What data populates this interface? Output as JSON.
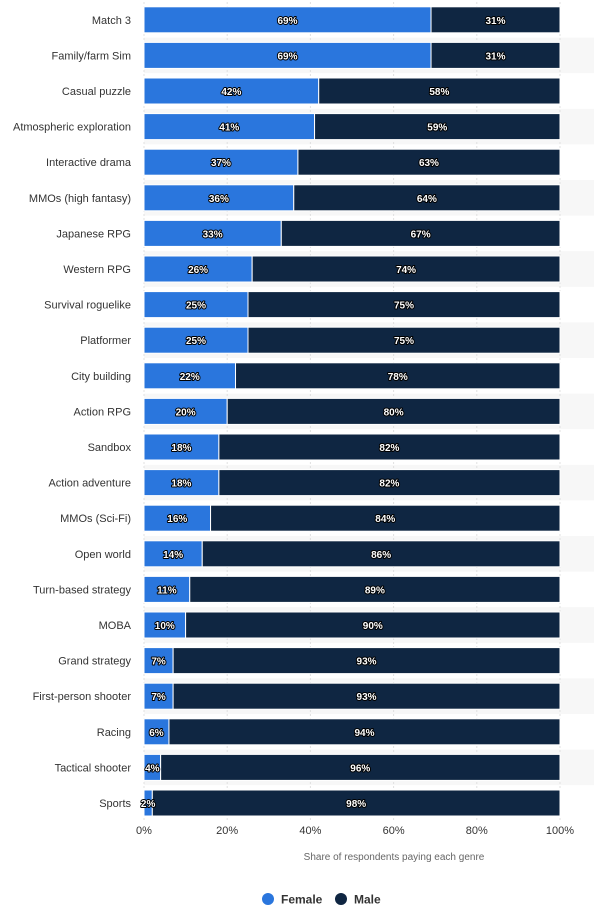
{
  "chart_data": {
    "type": "bar",
    "orientation": "horizontal",
    "stacked": true,
    "categories": [
      "Match 3",
      "Family/farm Sim",
      "Casual puzzle",
      "Atmospheric exploration",
      "Interactive drama",
      "MMOs (high fantasy)",
      "Japanese RPG",
      "Western RPG",
      "Survival roguelike",
      "Platformer",
      "City building",
      "Action RPG",
      "Sandbox",
      "Action adventure",
      "MMOs (Sci-Fi)",
      "Open world",
      "Turn-based strategy",
      "MOBA",
      "Grand strategy",
      "First-person shooter",
      "Racing",
      "Tactical shooter",
      "Sports"
    ],
    "series": [
      {
        "name": "Female",
        "color": "#2a76dd",
        "values": [
          69,
          69,
          42,
          41,
          37,
          36,
          33,
          26,
          25,
          25,
          22,
          20,
          18,
          18,
          16,
          14,
          11,
          10,
          7,
          7,
          6,
          4,
          2
        ]
      },
      {
        "name": "Male",
        "color": "#0f2642",
        "values": [
          31,
          31,
          58,
          59,
          63,
          64,
          67,
          74,
          75,
          75,
          78,
          80,
          82,
          82,
          84,
          86,
          89,
          90,
          93,
          93,
          94,
          96,
          98
        ]
      }
    ],
    "xlim": [
      0,
      100
    ],
    "xticks": [
      "0%",
      "20%",
      "40%",
      "60%",
      "80%",
      "100%"
    ],
    "xlabel": "Share of respondents paying each genre",
    "value_suffix": "%",
    "legend": "bottom",
    "grid": true
  }
}
